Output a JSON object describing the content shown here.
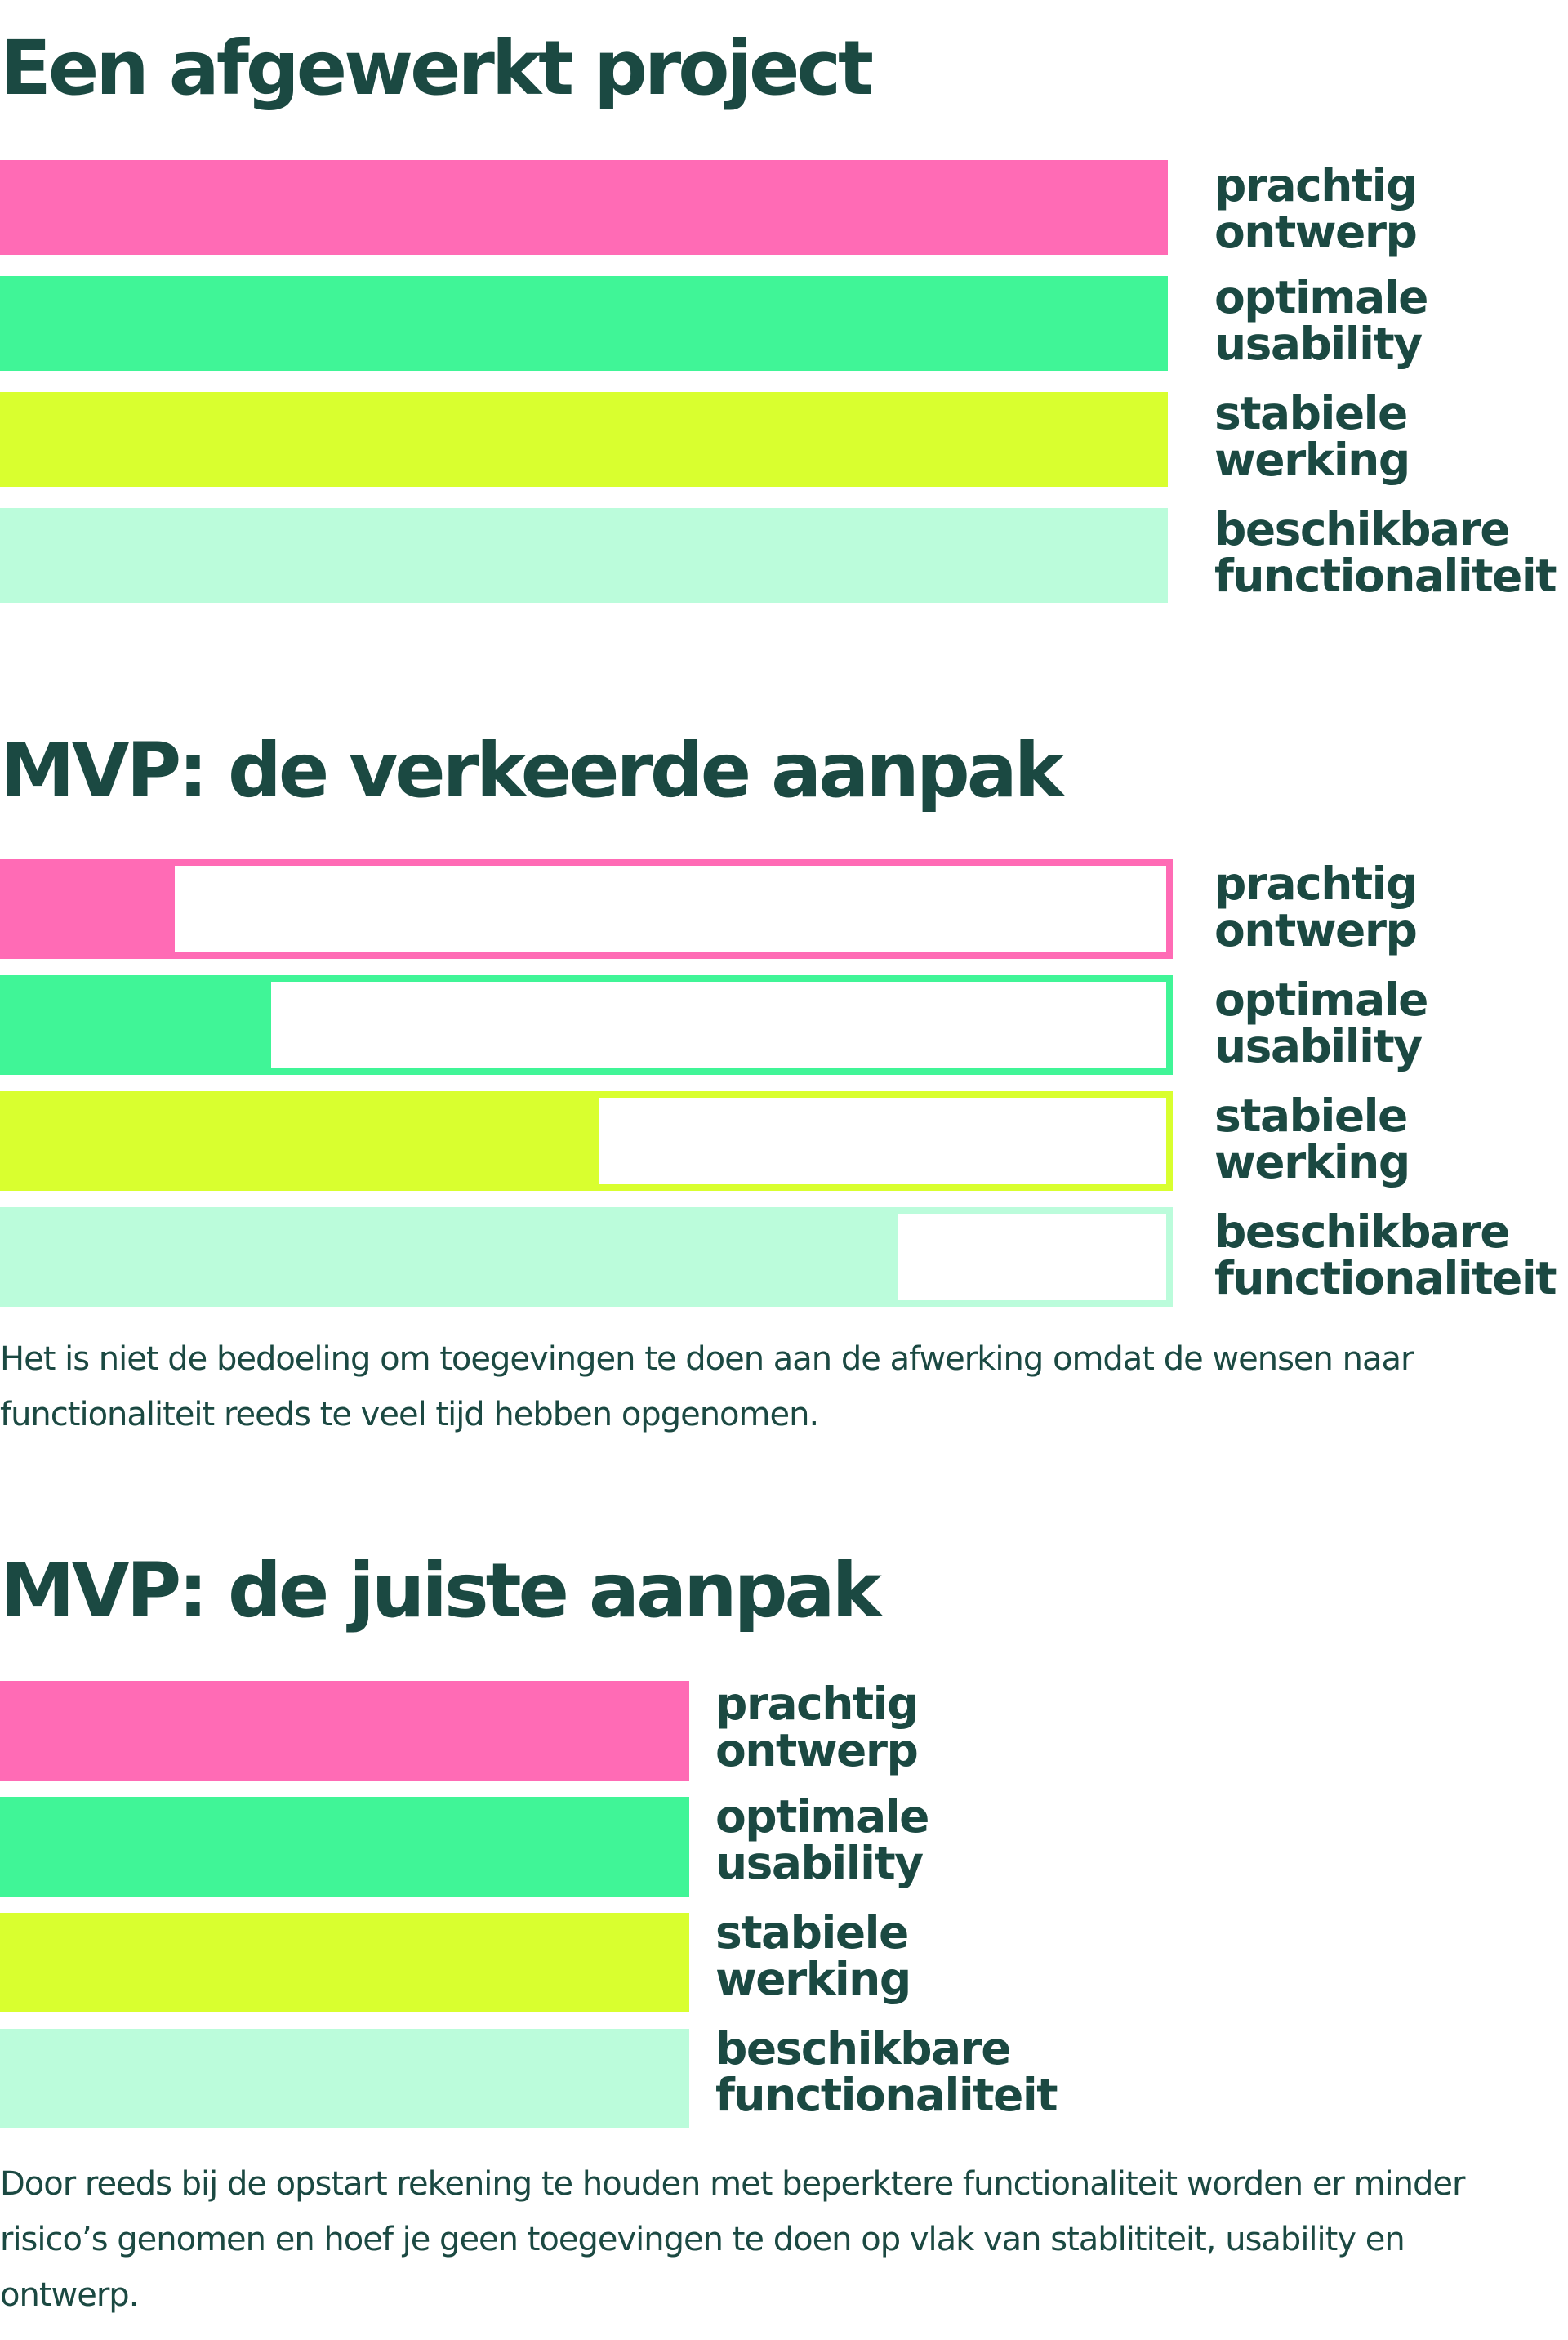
{
  "colors": {
    "text": "#1b4942",
    "design": "#ff6bb5",
    "usability": "#40f597",
    "stability": "#d9ff2f",
    "functionality": "#bbfcdb"
  },
  "sections": [
    {
      "title": "Een afgewerkt project",
      "bars": [
        {
          "line1": "prachtig",
          "line2": "ontwerp",
          "fill": 1.0,
          "outlined": false
        },
        {
          "line1": "optimale",
          "line2": "usability",
          "fill": 1.0,
          "outlined": false
        },
        {
          "line1": "stabiele",
          "line2": "werking",
          "fill": 1.0,
          "outlined": false
        },
        {
          "line1": "beschikbare",
          "line2": "functionaliteit",
          "fill": 1.0,
          "outlined": false
        }
      ]
    },
    {
      "title": "MVP: de verkeerde aanpak",
      "bars": [
        {
          "line1": "prachtig",
          "line2": "ontwerp",
          "fill": 0.145,
          "outlined": true
        },
        {
          "line1": "optimale",
          "line2": "usability",
          "fill": 0.228,
          "outlined": true
        },
        {
          "line1": "stabiele",
          "line2": "werking",
          "fill": 0.511,
          "outlined": true
        },
        {
          "line1": "beschikbare",
          "line2": "functionaliteit",
          "fill": 0.768,
          "outlined": true
        }
      ],
      "note": "Het is niet de bedoeling om toegevingen te doen aan de afwerking omdat de wensen naar functionaliteit reeds te veel tijd hebben opgenomen."
    },
    {
      "title": "MVP: de juiste aanpak",
      "bars": [
        {
          "line1": "prachtig",
          "line2": "ontwerp",
          "fill": 1.0,
          "outlined": false
        },
        {
          "line1": "optimale",
          "line2": "usability",
          "fill": 1.0,
          "outlined": false
        },
        {
          "line1": "stabiele",
          "line2": "werking",
          "fill": 1.0,
          "outlined": false
        },
        {
          "line1": "beschikbare",
          "line2": "functionaliteit",
          "fill": 1.0,
          "outlined": false
        }
      ],
      "note": "Door reeds bij de opstart rekening te houden met beperktere functionaliteit worden er minder risico’s genomen en hoef je geen toegevingen te doen op vlak van stablititeit, usability en ontwerp."
    }
  ]
}
